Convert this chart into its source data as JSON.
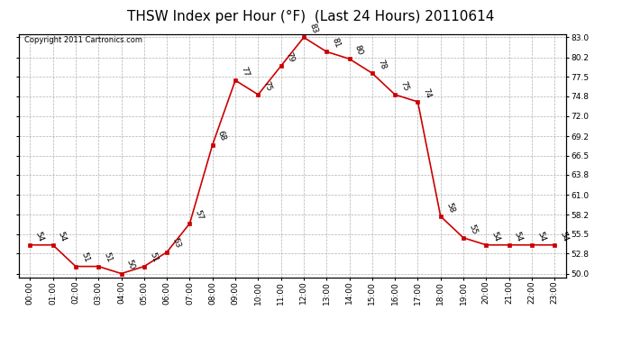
{
  "title": "THSW Index per Hour (°F)  (Last 24 Hours) 20110614",
  "copyright": "Copyright 2011 Cartronics.com",
  "hours": [
    "00:00",
    "01:00",
    "02:00",
    "03:00",
    "04:00",
    "05:00",
    "06:00",
    "07:00",
    "08:00",
    "09:00",
    "10:00",
    "11:00",
    "12:00",
    "13:00",
    "14:00",
    "15:00",
    "16:00",
    "17:00",
    "18:00",
    "19:00",
    "20:00",
    "21:00",
    "22:00",
    "23:00"
  ],
  "values": [
    54,
    54,
    51,
    51,
    50,
    51,
    53,
    57,
    68,
    77,
    75,
    79,
    83,
    81,
    80,
    78,
    75,
    74,
    58,
    55,
    54,
    54,
    54,
    54
  ],
  "line_color": "#cc0000",
  "marker_color": "#cc0000",
  "bg_color": "#ffffff",
  "plot_bg_color": "#ffffff",
  "grid_color": "#b0b0b0",
  "ylim_min": 50.0,
  "ylim_max": 83.0,
  "yticks": [
    50.0,
    52.8,
    55.5,
    58.2,
    61.0,
    63.8,
    66.5,
    69.2,
    72.0,
    74.8,
    77.5,
    80.2,
    83.0
  ],
  "title_fontsize": 11,
  "label_fontsize": 6.5,
  "tick_fontsize": 6.5,
  "copyright_fontsize": 6
}
